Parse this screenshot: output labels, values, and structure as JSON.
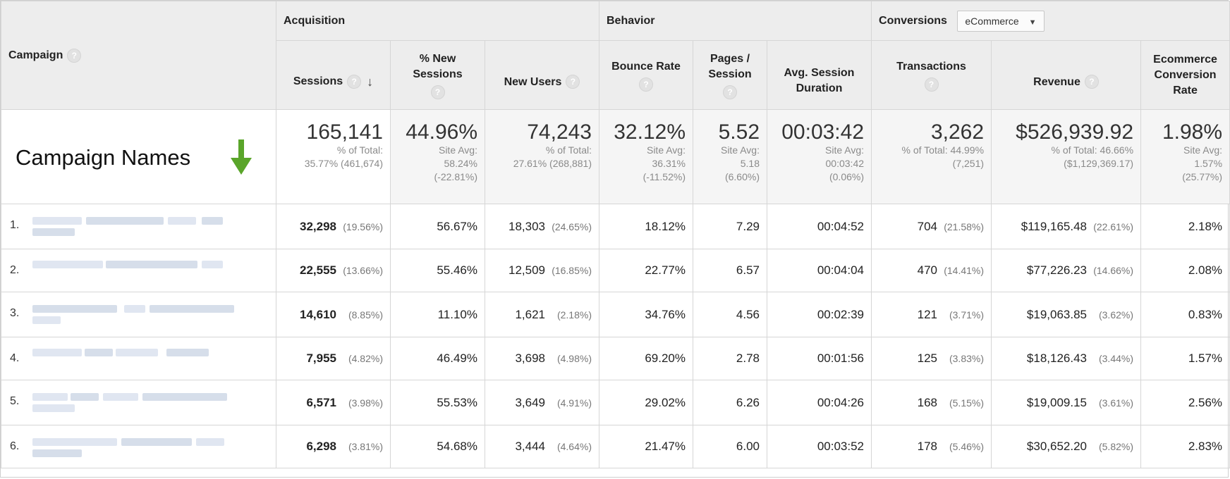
{
  "groups": {
    "acquisition": "Acquisition",
    "behavior": "Behavior",
    "conversions": "Conversions",
    "conversions_dropdown": "eCommerce"
  },
  "columns": {
    "campaign": "Campaign",
    "sessions": "Sessions",
    "new_sessions": "% New Sessions",
    "new_users": "New Users",
    "bounce_rate": "Bounce Rate",
    "pages_session": "Pages / Session",
    "avg_duration": "Avg. Session Duration",
    "transactions": "Transactions",
    "revenue": "Revenue",
    "conv_rate": "Ecommerce Conversion Rate"
  },
  "annotation": {
    "campaign_names": "Campaign Names"
  },
  "totals": {
    "sessions": {
      "value": "165,141",
      "l1": "% of Total:",
      "l2": "35.77% (461,674)"
    },
    "new_sessions": {
      "value": "44.96%",
      "l1": "Site Avg:",
      "l2": "58.24%",
      "l3": "(-22.81%)"
    },
    "new_users": {
      "value": "74,243",
      "l1": "% of Total:",
      "l2": "27.61% (268,881)"
    },
    "bounce_rate": {
      "value": "32.12%",
      "l1": "Site Avg:",
      "l2": "36.31%",
      "l3": "(-11.52%)"
    },
    "pages_session": {
      "value": "5.52",
      "l1": "Site Avg:",
      "l2": "5.18",
      "l3": "(6.60%)"
    },
    "avg_duration": {
      "value": "00:03:42",
      "l1": "Site Avg:",
      "l2": "00:03:42",
      "l3": "(0.06%)"
    },
    "transactions": {
      "value": "3,262",
      "l1": "% of Total: 44.99%",
      "l2": "(7,251)"
    },
    "revenue": {
      "value": "$526,939.92",
      "l1": "% of Total: 46.66%",
      "l2": "($1,129,369.17)"
    },
    "conv_rate": {
      "value": "1.98%",
      "l1": "Site Avg:",
      "l2": "1.57%",
      "l3": "(25.77%)"
    }
  },
  "rows": [
    {
      "num": "1.",
      "sessions": "32,298",
      "sessions_pct": "(19.56%)",
      "new_sessions": "56.67%",
      "new_users": "18,303",
      "new_users_pct": "(24.65%)",
      "bounce": "18.12%",
      "pages": "7.29",
      "duration": "00:04:52",
      "transactions": "704",
      "transactions_pct": "(21.58%)",
      "revenue": "$119,165.48",
      "revenue_pct": "(22.61%)",
      "conv": "2.18%"
    },
    {
      "num": "2.",
      "sessions": "22,555",
      "sessions_pct": "(13.66%)",
      "new_sessions": "55.46%",
      "new_users": "12,509",
      "new_users_pct": "(16.85%)",
      "bounce": "22.77%",
      "pages": "6.57",
      "duration": "00:04:04",
      "transactions": "470",
      "transactions_pct": "(14.41%)",
      "revenue": "$77,226.23",
      "revenue_pct": "(14.66%)",
      "conv": "2.08%"
    },
    {
      "num": "3.",
      "sessions": "14,610",
      "sessions_pct": "(8.85%)",
      "new_sessions": "11.10%",
      "new_users": "1,621",
      "new_users_pct": "(2.18%)",
      "bounce": "34.76%",
      "pages": "4.56",
      "duration": "00:02:39",
      "transactions": "121",
      "transactions_pct": "(3.71%)",
      "revenue": "$19,063.85",
      "revenue_pct": "(3.62%)",
      "conv": "0.83%"
    },
    {
      "num": "4.",
      "sessions": "7,955",
      "sessions_pct": "(4.82%)",
      "new_sessions": "46.49%",
      "new_users": "3,698",
      "new_users_pct": "(4.98%)",
      "bounce": "69.20%",
      "pages": "2.78",
      "duration": "00:01:56",
      "transactions": "125",
      "transactions_pct": "(3.83%)",
      "revenue": "$18,126.43",
      "revenue_pct": "(3.44%)",
      "conv": "1.57%"
    },
    {
      "num": "5.",
      "sessions": "6,571",
      "sessions_pct": "(3.98%)",
      "new_sessions": "55.53%",
      "new_users": "3,649",
      "new_users_pct": "(4.91%)",
      "bounce": "29.02%",
      "pages": "6.26",
      "duration": "00:04:26",
      "transactions": "168",
      "transactions_pct": "(5.15%)",
      "revenue": "$19,009.15",
      "revenue_pct": "(3.61%)",
      "conv": "2.56%"
    },
    {
      "num": "6.",
      "sessions": "6,298",
      "sessions_pct": "(3.81%)",
      "new_sessions": "54.68%",
      "new_users": "3,444",
      "new_users_pct": "(4.64%)",
      "bounce": "21.47%",
      "pages": "6.00",
      "duration": "00:03:52",
      "transactions": "178",
      "transactions_pct": "(5.46%)",
      "revenue": "$30,652.20",
      "revenue_pct": "(5.82%)",
      "conv": "2.83%"
    }
  ]
}
